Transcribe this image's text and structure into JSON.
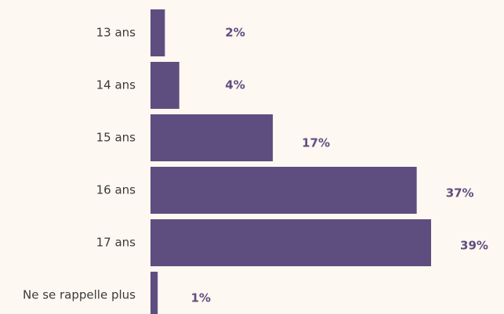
{
  "chart_data": {
    "type": "bar",
    "orientation": "horizontal",
    "categories": [
      "13 ans",
      "14 ans",
      "15 ans",
      "16 ans",
      "17 ans",
      "Ne se rappelle plus"
    ],
    "values": [
      2,
      4,
      17,
      37,
      39,
      1
    ],
    "value_labels": [
      "2%",
      "4%",
      "17%",
      "37%",
      "39%",
      "1%"
    ],
    "color": "#5e4e80"
  }
}
